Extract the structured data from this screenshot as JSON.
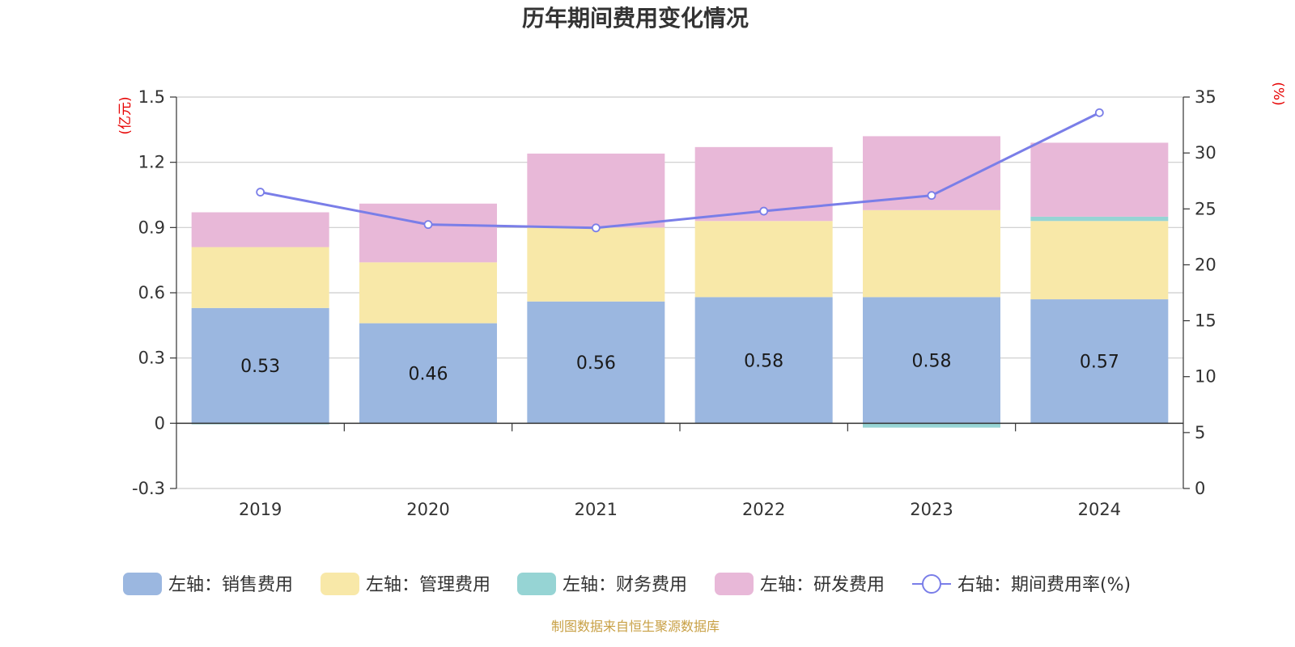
{
  "chart_data": {
    "type": "bar",
    "title": "历年期间费用变化情况",
    "categories": [
      "2019",
      "2020",
      "2021",
      "2022",
      "2023",
      "2024"
    ],
    "left_axis": {
      "unit": "(亿元)",
      "min": -0.3,
      "max": 1.5,
      "ticks": [
        1.5,
        1.2,
        0.9,
        0.6,
        0.3,
        0,
        -0.3
      ],
      "tick_labels": [
        "1.5",
        "1.2",
        "0.9",
        "0.6",
        "0.3",
        "0",
        "-0.3"
      ]
    },
    "right_axis": {
      "unit": "(%)",
      "min": 0,
      "max": 35,
      "ticks": [
        35,
        30,
        25,
        20,
        15,
        10,
        5,
        0
      ],
      "tick_labels": [
        "35",
        "30",
        "25",
        "20",
        "15",
        "10",
        "5",
        "0"
      ]
    },
    "series": [
      {
        "name": "销售费用",
        "axis": "left",
        "kind": "bar",
        "color": "#9bb7e0",
        "values": [
          0.53,
          0.46,
          0.56,
          0.58,
          0.58,
          0.57
        ],
        "labels": [
          "0.53",
          "0.46",
          "0.56",
          "0.58",
          "0.58",
          "0.57"
        ]
      },
      {
        "name": "管理费用",
        "axis": "left",
        "kind": "bar",
        "color": "#f8e8a8",
        "values": [
          0.28,
          0.28,
          0.34,
          0.35,
          0.4,
          0.36
        ]
      },
      {
        "name": "财务费用",
        "axis": "left",
        "kind": "bar",
        "color": "#96d4d4",
        "values": [
          -0.005,
          0.0,
          0.0,
          0.0,
          -0.02,
          0.02
        ]
      },
      {
        "name": "研发费用",
        "axis": "left",
        "kind": "bar",
        "color": "#e8b8d8",
        "values": [
          0.16,
          0.27,
          0.34,
          0.34,
          0.34,
          0.34
        ]
      },
      {
        "name": "期间费用率(%)",
        "axis": "right",
        "kind": "line",
        "color": "#7a7ee8",
        "values": [
          26.5,
          23.6,
          23.3,
          24.8,
          26.2,
          33.6
        ]
      }
    ],
    "legend": {
      "position": "bottom",
      "items": [
        "左轴：销售费用",
        "左轴：管理费用",
        "左轴：财务费用",
        "左轴：研发费用",
        "右轴：期间费用率(%)"
      ]
    },
    "source": "制图数据来自恒生聚源数据库"
  }
}
